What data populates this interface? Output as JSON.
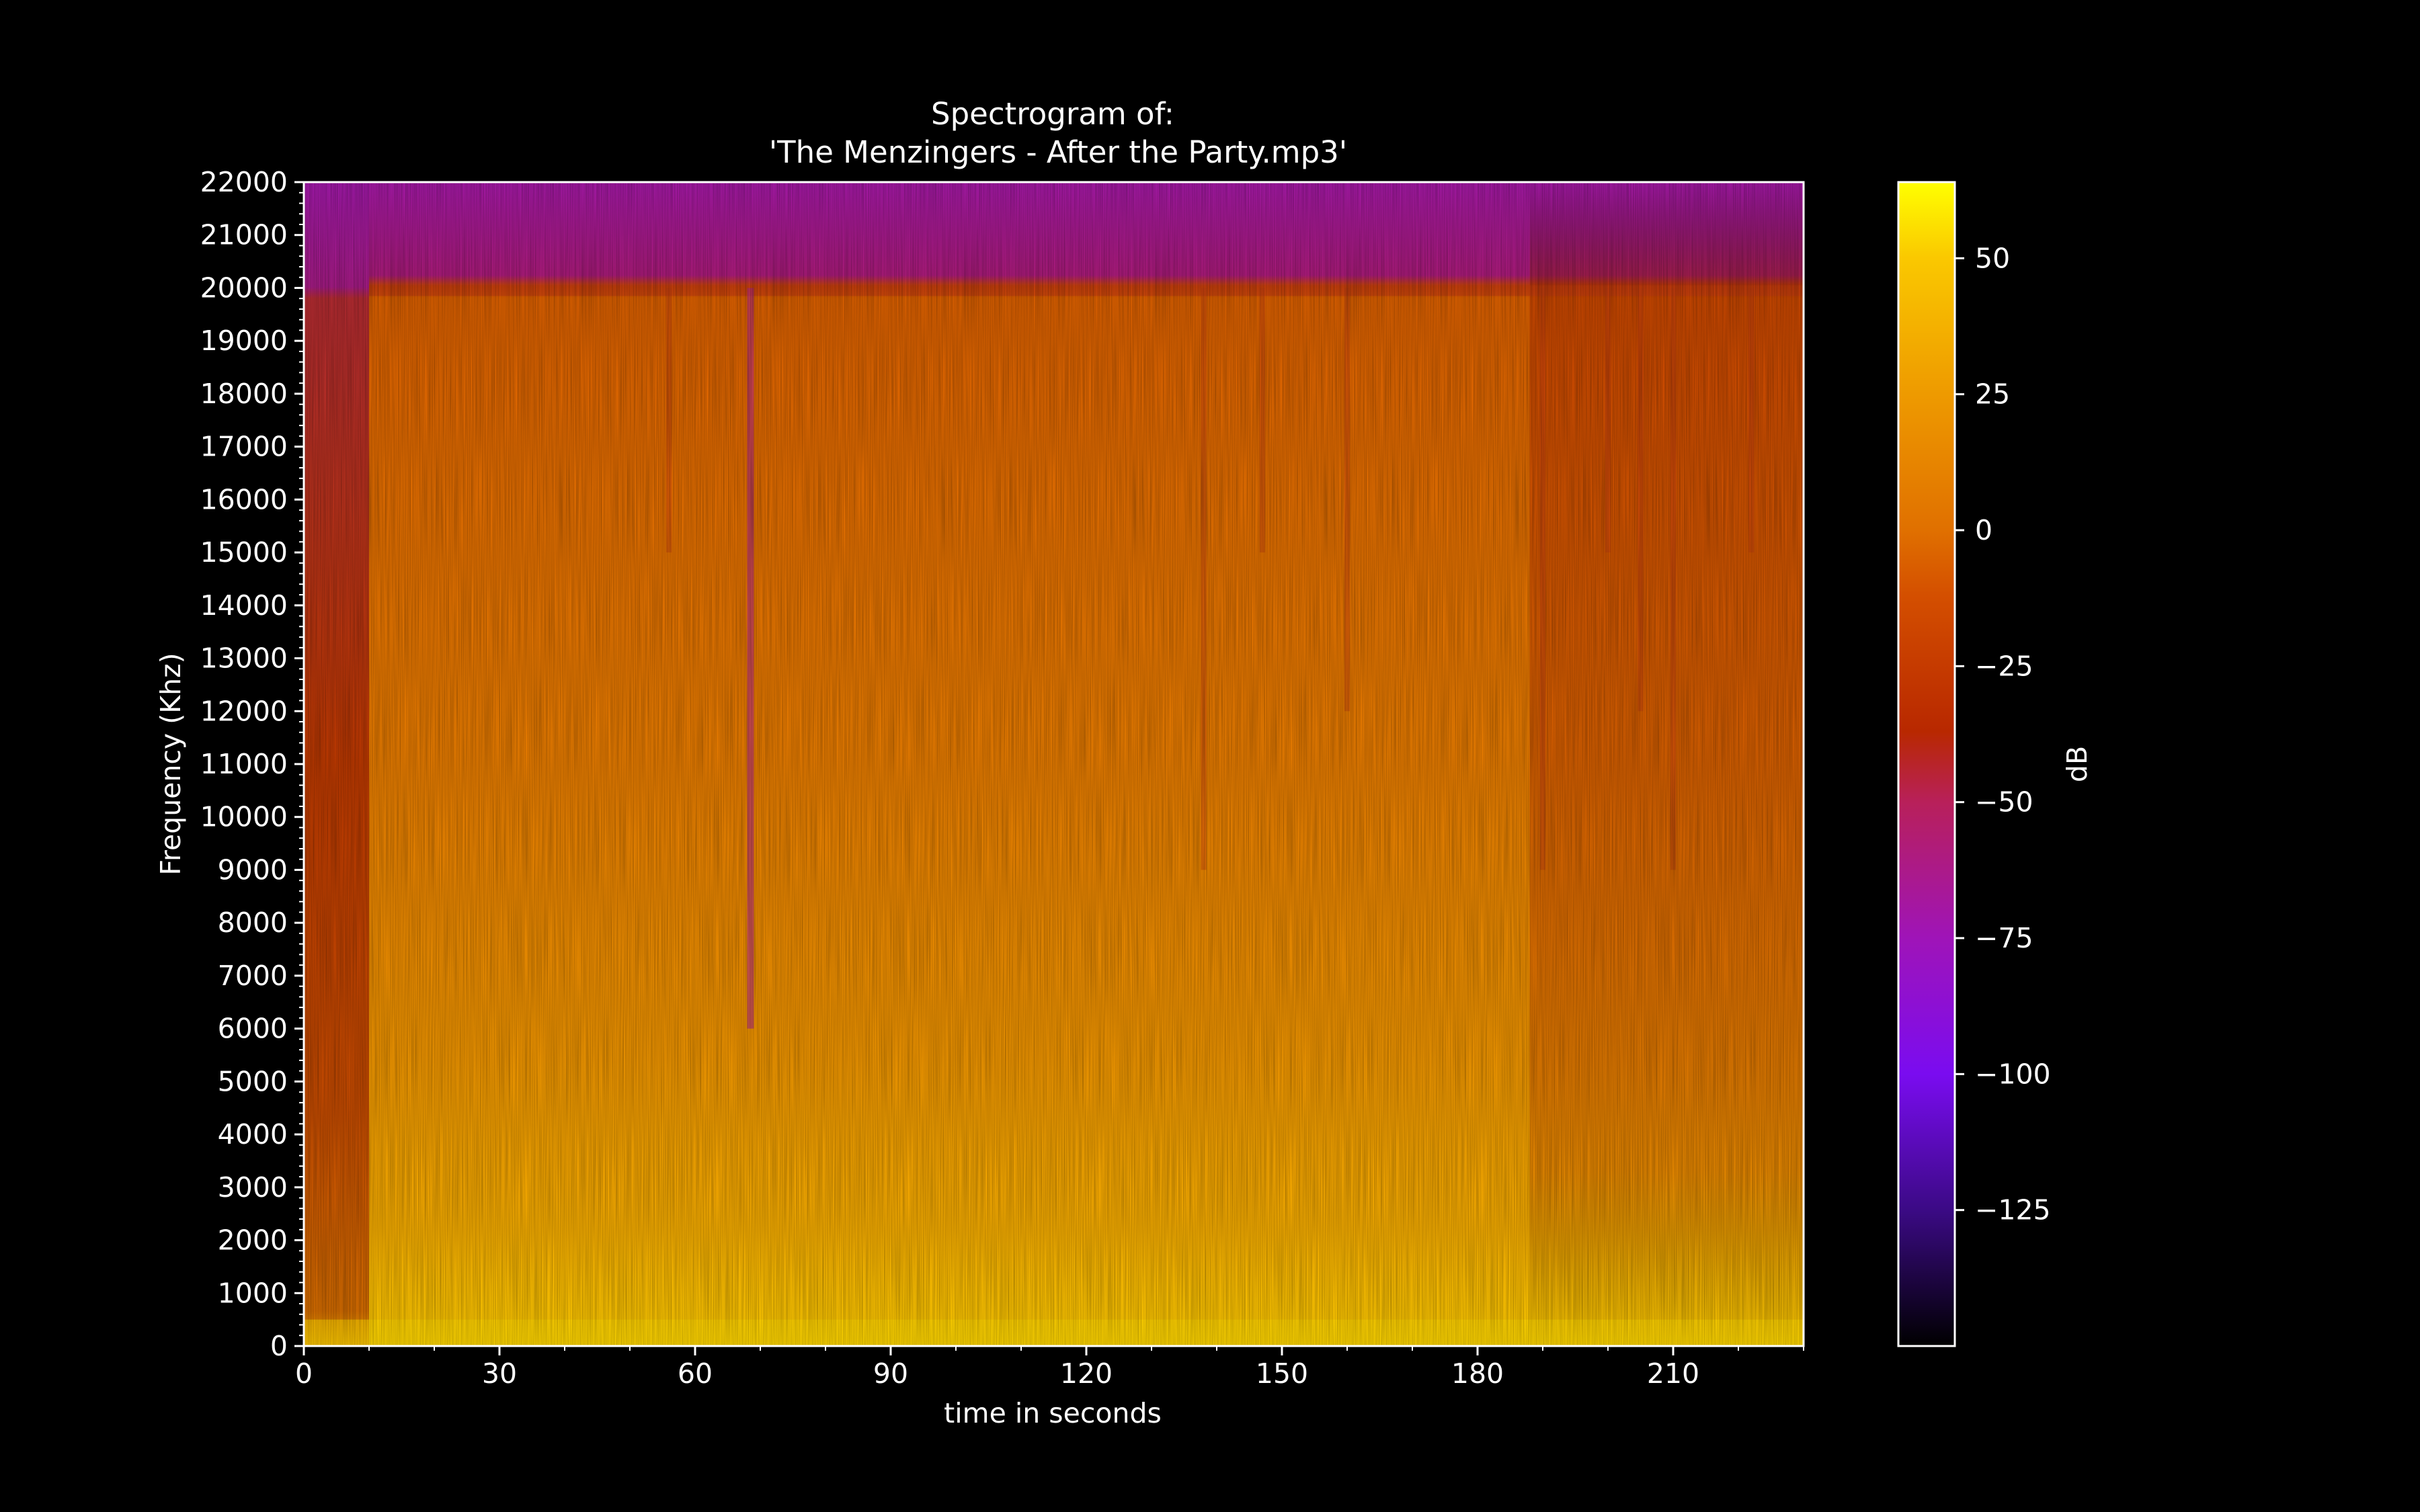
{
  "chart_data": {
    "type": "heatmap",
    "title": "Spectrogram of:\n'The Menzingers -  After the Party.mp3'",
    "title_lines": [
      "Spectrogram of:",
      "'The Menzingers -  After the Party.mp3'"
    ],
    "xlabel": "time in seconds",
    "ylabel": "Frequency (Khz)",
    "xlim": [
      0,
      230
    ],
    "ylim": [
      0,
      22000
    ],
    "x_ticks": [
      0,
      30,
      60,
      90,
      120,
      150,
      180,
      210
    ],
    "y_ticks": [
      0,
      1000,
      2000,
      3000,
      4000,
      5000,
      6000,
      7000,
      8000,
      9000,
      10000,
      11000,
      12000,
      13000,
      14000,
      15000,
      16000,
      17000,
      18000,
      19000,
      20000,
      21000,
      22000
    ],
    "colorbar": {
      "label": "dB",
      "range": [
        -150,
        64
      ],
      "ticks": [
        50,
        25,
        0,
        -25,
        -50,
        -75,
        -100,
        -125
      ],
      "tick_labels": [
        "50",
        "25",
        "0",
        "−25",
        "−50",
        "−75",
        "−100",
        "−125"
      ],
      "colormap": "gnuplot",
      "stops": [
        {
          "db": -150,
          "color": "#000000"
        },
        {
          "db": -125,
          "color": "#3b0a85"
        },
        {
          "db": -100,
          "color": "#7a0cf0"
        },
        {
          "db": -75,
          "color": "#9f14b8"
        },
        {
          "db": -50,
          "color": "#b8205a"
        },
        {
          "db": -37,
          "color": "#b82800"
        },
        {
          "db": -12,
          "color": "#d44f00"
        },
        {
          "db": 0,
          "color": "#e07000"
        },
        {
          "db": 25,
          "color": "#ee9a00"
        },
        {
          "db": 50,
          "color": "#fac800"
        },
        {
          "db": 64,
          "color": "#ffff00"
        }
      ]
    },
    "grid": false,
    "regions": {
      "intro_end_s": 10,
      "low_pass_cutoff_hz": 20000,
      "outro_start_s": 188,
      "dropout_times_s": [
        56,
        68.5,
        138,
        147,
        160,
        190,
        200,
        205,
        210,
        222
      ]
    }
  }
}
